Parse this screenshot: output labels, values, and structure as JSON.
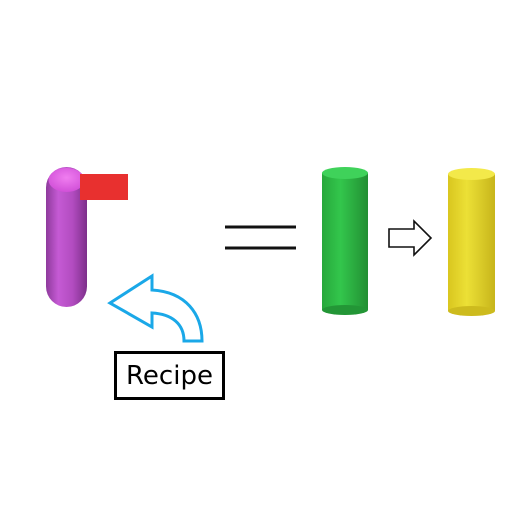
{
  "recipe_label": "Recipe",
  "colors": {
    "capsule": "#b04fbf",
    "capsule_highlight": "#e85ee8",
    "flag": "#e8302f",
    "equals": "#111111",
    "green_cylinder": "#2fbf46",
    "yellow_cylinder": "#e8da2a",
    "recipe_arrow": "#1aa8e8",
    "step_arrow": "#111111"
  },
  "icons": {
    "capsule": "purple-capsule-icon",
    "flag": "red-flag-icon",
    "curved_arrow": "curved-arrow-icon",
    "equals": "equals-sign-icon",
    "green_cylinder": "green-cylinder-icon",
    "step_arrow": "right-arrow-icon",
    "yellow_cylinder": "yellow-cylinder-icon"
  }
}
